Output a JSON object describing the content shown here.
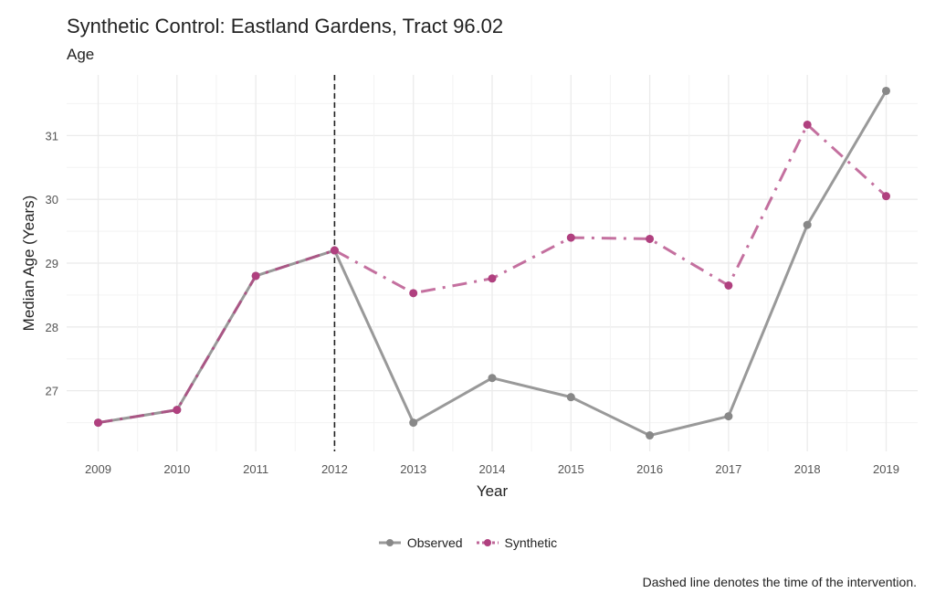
{
  "chart_data": {
    "type": "line",
    "title": "Synthetic Control: Eastland Gardens, Tract 96.02",
    "subtitle": "Age",
    "xlabel": "Year",
    "ylabel": "Median Age (Years)",
    "x": [
      2009,
      2010,
      2011,
      2012,
      2013,
      2014,
      2015,
      2016,
      2017,
      2018,
      2019
    ],
    "x_tick_labels": [
      "2009",
      "2010",
      "2011",
      "2012",
      "2013",
      "2014",
      "2015",
      "2016",
      "2017",
      "2018",
      "2019"
    ],
    "y_ticks": [
      27,
      28,
      29,
      30,
      31
    ],
    "y_tick_labels": [
      "27",
      "28",
      "29",
      "30",
      "31"
    ],
    "ylim": [
      26.05,
      31.95
    ],
    "xlim": [
      2008.6,
      2019.4
    ],
    "grid": true,
    "intervention_x": 2012,
    "series": [
      {
        "name": "Observed",
        "color": "#999999",
        "linestyle": "solid",
        "values": [
          26.5,
          26.7,
          28.8,
          29.2,
          26.5,
          27.2,
          26.9,
          26.3,
          26.6,
          29.6,
          31.7
        ]
      },
      {
        "name": "Synthetic",
        "color": "#B0407F",
        "linestyle": "dashdot",
        "values": [
          26.5,
          26.7,
          28.8,
          29.2,
          28.53,
          28.76,
          29.4,
          29.38,
          28.65,
          31.17,
          30.05
        ]
      }
    ],
    "legend": {
      "position": "bottom",
      "labels": [
        "Observed",
        "Synthetic"
      ]
    },
    "caption": "Dashed line denotes the time of the intervention."
  }
}
